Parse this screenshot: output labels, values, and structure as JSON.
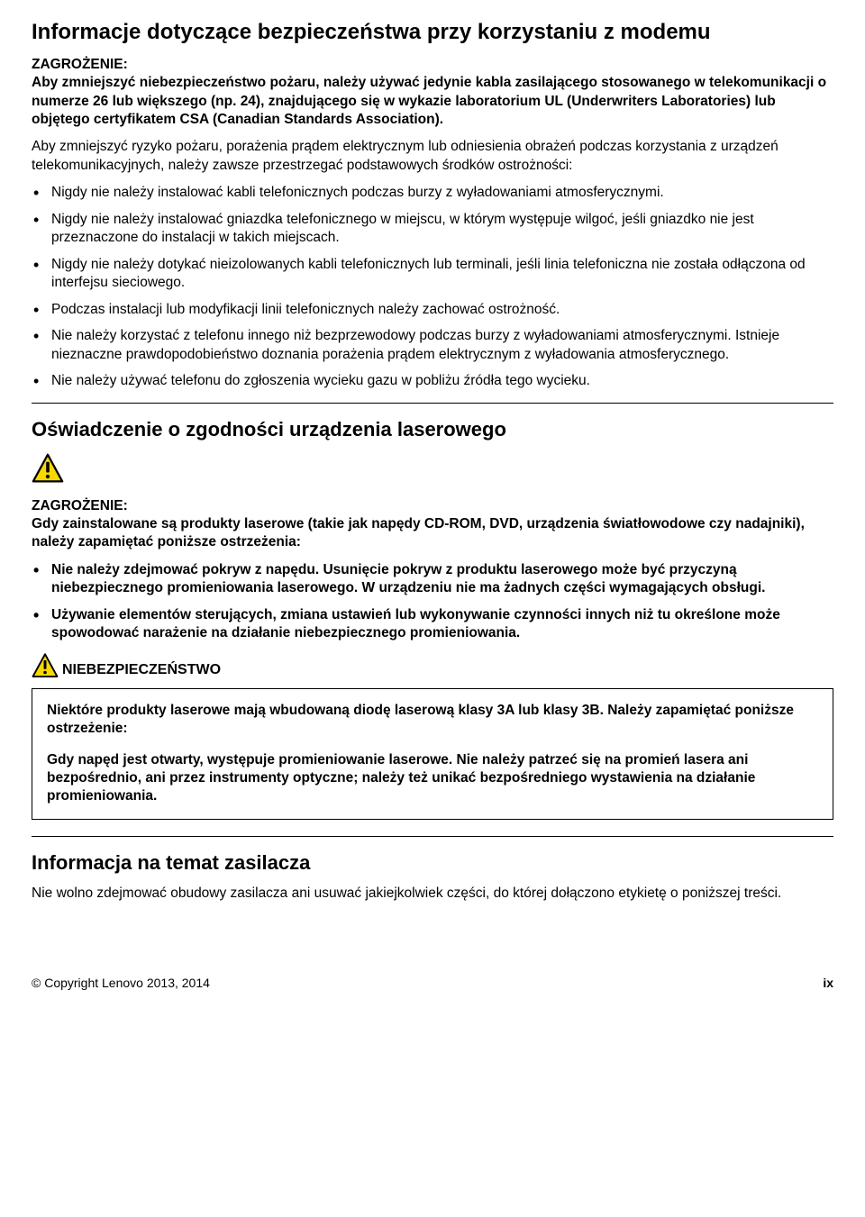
{
  "section1": {
    "title": "Informacje dotyczące bezpieczeństwa przy korzystaniu z modemu",
    "danger_label": "ZAGROŻENIE:",
    "danger_text": "Aby zmniejszyć niebezpieczeństwo pożaru, należy używać jedynie kabla zasilającego stosowanego w telekomunikacji o numerze 26 lub większego (np. 24), znajdującego się w wykazie laboratorium UL (Underwriters Laboratories) lub objętego certyfikatem CSA (Canadian Standards Association).",
    "intro": "Aby zmniejszyć ryzyko pożaru, porażenia prądem elektrycznym lub odniesienia obrażeń podczas korzystania z urządzeń telekomunikacyjnych, należy zawsze przestrzegać podstawowych środków ostrożności:",
    "bullets": [
      "Nigdy nie należy instalować kabli telefonicznych podczas burzy z wyładowaniami atmosferycznymi.",
      "Nigdy nie należy instalować gniazdka telefonicznego w miejscu, w którym występuje wilgoć, jeśli gniazdko nie jest przeznaczone do instalacji w takich miejscach.",
      "Nigdy nie należy dotykać nieizolowanych kabli telefonicznych lub terminali, jeśli linia telefoniczna nie została odłączona od interfejsu sieciowego.",
      "Podczas instalacji lub modyfikacji linii telefonicznych należy zachować ostrożność.",
      "Nie należy korzystać z telefonu innego niż bezprzewodowy podczas burzy z wyładowaniami atmosferycznymi. Istnieje nieznaczne prawdopodobieństwo doznania porażenia prądem elektrycznym z wyładowania atmosferycznego.",
      "Nie należy używać telefonu do zgłoszenia wycieku gazu w pobliżu źródła tego wycieku."
    ]
  },
  "section2": {
    "title": "Oświadczenie o zgodności urządzenia laserowego",
    "danger_label": "ZAGROŻENIE:",
    "danger_text": "Gdy zainstalowane są produkty laserowe (takie jak napędy CD-ROM, DVD, urządzenia światłowodowe czy nadajniki), należy zapamiętać poniższe ostrzeżenia:",
    "bullets": [
      "Nie należy zdejmować pokryw z napędu. Usunięcie pokryw z produktu laserowego może być przyczyną niebezpiecznego promieniowania laserowego. W urządzeniu nie ma żadnych części wymagających obsługi.",
      "Używanie elementów sterujących, zmiana ustawień lub wykonywanie czynności innych niż tu określone może spowodować narażenie na działanie niebezpiecznego promieniowania."
    ],
    "danger2_label": "NIEBEZPIECZEŃSTWO",
    "box_p1": "Niektóre produkty laserowe mają wbudowaną diodę laserową klasy 3A lub klasy 3B. Należy zapamiętać poniższe ostrzeżenie:",
    "box_p2": "Gdy napęd jest otwarty, występuje promieniowanie laserowe. Nie należy patrzeć się na promień lasera ani bezpośrednio, ani przez instrumenty optyczne; należy też unikać bezpośredniego wystawienia na działanie promieniowania."
  },
  "section3": {
    "title": "Informacja na temat zasilacza",
    "text": "Nie wolno zdejmować obudowy zasilacza ani usuwać jakiejkolwiek części, do której dołączono etykietę o poniższej treści."
  },
  "footer": {
    "copyright": "© Copyright Lenovo 2013, 2014",
    "page": "ix"
  },
  "icon": {
    "stroke": "#000000",
    "fill": "#f7d800",
    "size_large": 36,
    "size_small": 30
  }
}
